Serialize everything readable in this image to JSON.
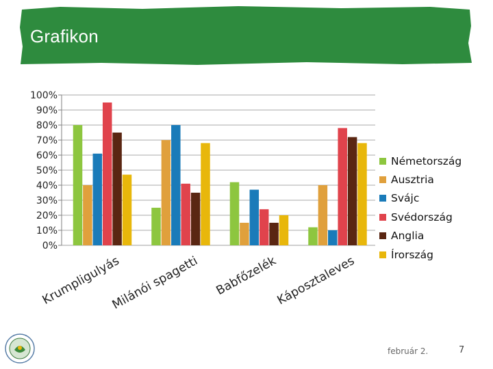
{
  "slide": {
    "title": "Grafikon",
    "footer_date": "február 2.",
    "page_number": "7",
    "banner_color": "#2e8b3e"
  },
  "chart_data": {
    "type": "bar",
    "categories": [
      "Krumpligulyás",
      "Milánói spagetti",
      "Babfőzelék",
      "Káposztaleves"
    ],
    "series": [
      {
        "name": "Németország",
        "color": "#8dc63f",
        "values": [
          80,
          25,
          42,
          12
        ]
      },
      {
        "name": "Ausztria",
        "color": "#e0a03c",
        "values": [
          40,
          70,
          15,
          40
        ]
      },
      {
        "name": "Svájc",
        "color": "#1a7bb9",
        "values": [
          61,
          80,
          37,
          10
        ]
      },
      {
        "name": "Svédország",
        "color": "#e0434c",
        "values": [
          95,
          41,
          24,
          78
        ]
      },
      {
        "name": "Anglia",
        "color": "#5a2612",
        "values": [
          75,
          35,
          15,
          72
        ]
      },
      {
        "name": "Írország",
        "color": "#e8b70b",
        "values": [
          47,
          68,
          20,
          68
        ]
      }
    ],
    "ylim": [
      0,
      100
    ],
    "yticks": [
      "0%",
      "10%",
      "20%",
      "30%",
      "40%",
      "50%",
      "60%",
      "70%",
      "80%",
      "90%",
      "100%"
    ],
    "grid": true,
    "legend_position": "right",
    "xlabel": "",
    "ylabel": ""
  }
}
